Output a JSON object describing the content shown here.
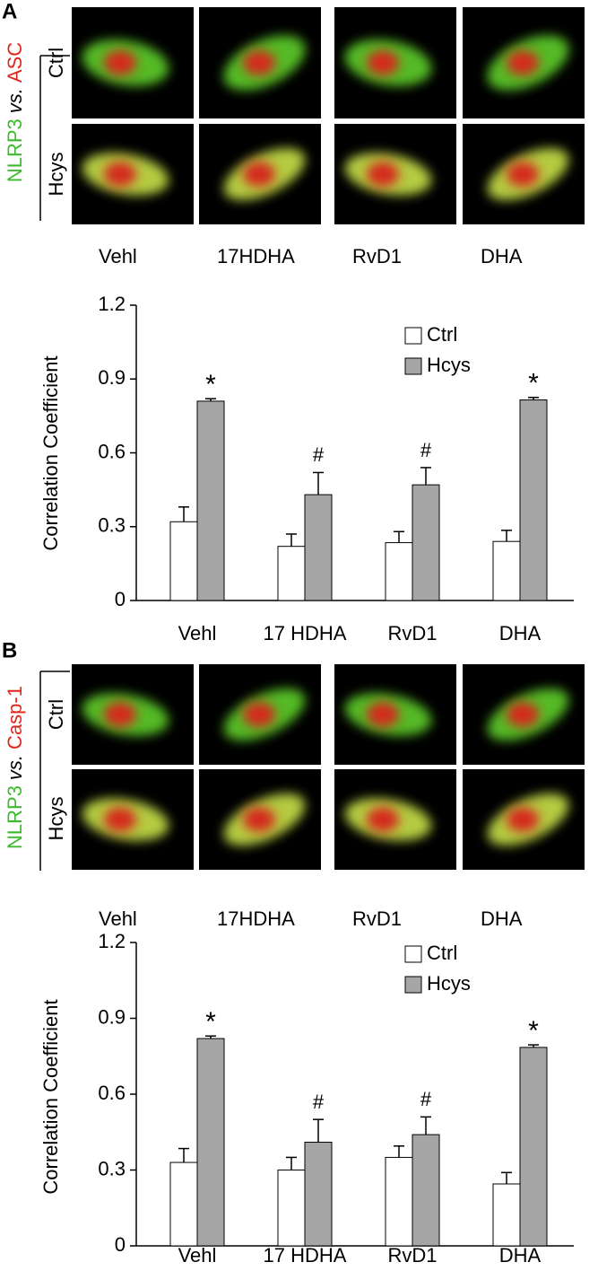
{
  "panels": [
    {
      "label": "A",
      "stain_green": "NLRP3",
      "stain_vs": "vs.",
      "stain_red": "ASC",
      "row_labels": [
        "Ctrl",
        "Hcys"
      ],
      "image_labels": [
        "Vehl",
        "17HDHA",
        "RvD1",
        "DHA"
      ]
    },
    {
      "label": "B",
      "stain_green": "NLRP3",
      "stain_vs": "vs.",
      "stain_red": "Casp-1",
      "row_labels": [
        "Ctrl",
        "Hcys"
      ],
      "image_labels": [
        "Vehl",
        "17HDHA",
        "RvD1",
        "DHA"
      ]
    }
  ],
  "chart_data": [
    {
      "type": "bar",
      "y_label": "Correlation Coefficient",
      "categories": [
        "Vehl",
        "17 HDHA",
        "RvD1",
        "DHA"
      ],
      "series": [
        {
          "name": "Ctrl",
          "color": "#ffffff",
          "values": [
            0.32,
            0.22,
            0.235,
            0.24
          ],
          "errors": [
            0.06,
            0.05,
            0.045,
            0.045
          ]
        },
        {
          "name": "Hcys",
          "color": "#a6a6a6",
          "values": [
            0.81,
            0.43,
            0.47,
            0.815
          ],
          "errors": [
            0.01,
            0.09,
            0.07,
            0.01
          ]
        }
      ],
      "annotations": [
        "*",
        "#",
        "#",
        "*"
      ],
      "ylim": [
        0,
        1.2
      ],
      "yticks": [
        0,
        0.3,
        0.6,
        0.9,
        1.2
      ],
      "legend": "top-right"
    },
    {
      "type": "bar",
      "y_label": "Correlation Coefficient",
      "categories": [
        "Vehl",
        "17 HDHA",
        "RvD1",
        "DHA"
      ],
      "series": [
        {
          "name": "Ctrl",
          "color": "#ffffff",
          "values": [
            0.33,
            0.3,
            0.35,
            0.245
          ],
          "errors": [
            0.055,
            0.05,
            0.045,
            0.045
          ]
        },
        {
          "name": "Hcys",
          "color": "#a6a6a6",
          "values": [
            0.82,
            0.41,
            0.44,
            0.785
          ],
          "errors": [
            0.01,
            0.09,
            0.07,
            0.01
          ]
        }
      ],
      "annotations": [
        "*",
        "#",
        "#",
        "*"
      ],
      "ylim": [
        0,
        1.2
      ],
      "yticks": [
        0,
        0.3,
        0.6,
        0.9,
        1.2
      ],
      "legend": "top-right"
    }
  ]
}
